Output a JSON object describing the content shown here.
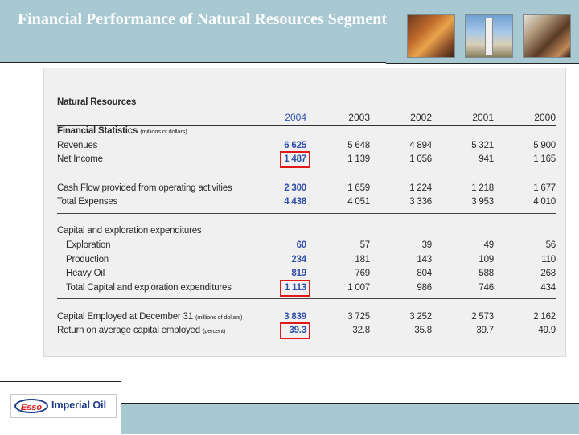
{
  "slide": {
    "title": "Financial Performance of Natural Resources Segment"
  },
  "table": {
    "heading": "Natural Resources",
    "years": [
      "2004",
      "2003",
      "2002",
      "2001",
      "2000"
    ],
    "financial_statistics": {
      "label": "Financial Statistics",
      "unit": "(millions of dollars)"
    },
    "rows": [
      {
        "label": "Revenues",
        "values": [
          "6 625",
          "5 648",
          "4 894",
          "5 321",
          "5 900"
        ]
      },
      {
        "label": "Net Income",
        "values": [
          "1 487",
          "1 139",
          "1 056",
          "941",
          "1 165"
        ]
      },
      {
        "label": "Cash Flow provided from operating activities",
        "values": [
          "2 300",
          "1 659",
          "1 224",
          "1 218",
          "1 677"
        ]
      },
      {
        "label": "Total Expenses",
        "values": [
          "4 438",
          "4 051",
          "3 336",
          "3 953",
          "4 010"
        ]
      }
    ],
    "capex": {
      "label": "Capital and exploration expenditures",
      "rows": [
        {
          "label": "Exploration",
          "values": [
            "60",
            "57",
            "39",
            "49",
            "56"
          ]
        },
        {
          "label": "Production",
          "values": [
            "234",
            "181",
            "143",
            "109",
            "110"
          ]
        },
        {
          "label": "Heavy Oil",
          "values": [
            "819",
            "769",
            "804",
            "588",
            "268"
          ]
        },
        {
          "label": "Total Capital and exploration expenditures",
          "values": [
            "1 113",
            "1 007",
            "986",
            "746",
            "434"
          ]
        }
      ]
    },
    "capital_employed": {
      "label": "Capital Employed at December 31",
      "unit": "(millions of dollars)",
      "values": [
        "3 839",
        "3 725",
        "3 252",
        "2 573",
        "2 162"
      ]
    },
    "roce": {
      "label": "Return on average capital employed",
      "unit": "(percent)",
      "values": [
        "39.3",
        "32.8",
        "35.8",
        "39.7",
        "49.9"
      ]
    }
  },
  "logo": {
    "esso": "Esso",
    "company": "Imperial Oil"
  },
  "colors": {
    "band": "#a8c8d2",
    "highlight": "#e01818",
    "current_year": "#2f4fa8",
    "logo_blue": "#1d3b8a",
    "logo_red": "#d81e1e"
  }
}
